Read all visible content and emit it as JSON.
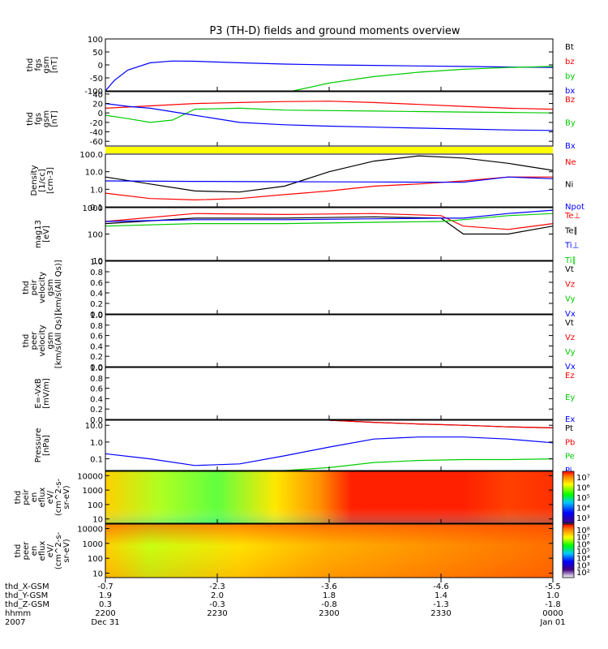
{
  "title": "P3 (TH-D) fields and ground moments overview",
  "chart_data": [
    {
      "id": "p1",
      "type": "line",
      "ylabel": [
        "thd",
        "fgs",
        "gsm",
        "[nT]"
      ],
      "ylim": [
        -100,
        100
      ],
      "ticks": [
        "100",
        "50",
        "0",
        "-50",
        "-100"
      ],
      "tick_values": [
        100,
        50,
        0,
        -50,
        -100
      ],
      "legend": [
        {
          "label": "Bt",
          "color": "#000000"
        },
        {
          "label": "bz",
          "color": "#ff0000"
        },
        {
          "label": "by",
          "color": "#00cc00"
        },
        {
          "label": "bx",
          "color": "#0000ff"
        }
      ],
      "series": [
        {
          "color": "#0000ff",
          "x": [
            0.0,
            0.02,
            0.05,
            0.1,
            0.15,
            0.2,
            0.3,
            0.4,
            0.5,
            0.6,
            0.7,
            0.8,
            0.9,
            1.0
          ],
          "y": [
            -100,
            -60,
            -20,
            8,
            15,
            14,
            8,
            3,
            0,
            -2,
            -4,
            -6,
            -8,
            -10
          ]
        },
        {
          "color": "#00cc00",
          "x": [
            0.42,
            0.5,
            0.6,
            0.7,
            0.8,
            0.9,
            1.0
          ],
          "y": [
            -100,
            -70,
            -45,
            -28,
            -17,
            -10,
            -6
          ]
        }
      ]
    },
    {
      "id": "p2",
      "type": "line",
      "ylabel": [
        "thd",
        "fgs",
        "gsm",
        "[nT]"
      ],
      "ylim": [
        -70,
        45
      ],
      "ticks": [
        "40",
        "20",
        "0",
        "-20",
        "-40",
        "-60"
      ],
      "tick_values": [
        40,
        20,
        0,
        -20,
        -40,
        -60
      ],
      "legend": [
        {
          "label": "Bz",
          "color": "#ff0000"
        },
        {
          "label": "By",
          "color": "#00cc00"
        },
        {
          "label": "Bx",
          "color": "#0000ff"
        }
      ],
      "series": [
        {
          "color": "#ff0000",
          "x": [
            0.0,
            0.1,
            0.2,
            0.3,
            0.4,
            0.5,
            0.6,
            0.7,
            0.8,
            0.9,
            1.0
          ],
          "y": [
            10,
            15,
            20,
            22,
            24,
            25,
            22,
            18,
            14,
            10,
            8
          ]
        },
        {
          "color": "#00cc00",
          "x": [
            0.0,
            0.05,
            0.1,
            0.15,
            0.2,
            0.3,
            0.4,
            0.5,
            0.6,
            0.7,
            0.8,
            0.9,
            1.0
          ],
          "y": [
            -5,
            -12,
            -20,
            -15,
            8,
            10,
            6,
            5,
            4,
            3,
            2,
            1,
            0
          ]
        },
        {
          "color": "#0000ff",
          "x": [
            0.0,
            0.05,
            0.1,
            0.2,
            0.3,
            0.4,
            0.5,
            0.6,
            0.7,
            0.8,
            0.9,
            1.0
          ],
          "y": [
            20,
            14,
            10,
            -5,
            -20,
            -25,
            -28,
            -30,
            -32,
            -34,
            -36,
            -37
          ]
        }
      ]
    },
    {
      "id": "p3",
      "type": "line",
      "yscale": "log",
      "ylabel": [
        "Density",
        "[1/cc]",
        "[cm-3]"
      ],
      "ylim": [
        0.1,
        100
      ],
      "ticks": [
        "100.0",
        "10.0",
        "1.0",
        "0.1"
      ],
      "tick_values": [
        100,
        10,
        1,
        0.1
      ],
      "legend": [
        {
          "label": "Ne",
          "color": "#ff0000"
        },
        {
          "label": "Ni",
          "color": "#000000"
        },
        {
          "label": "Npot",
          "color": "#0000ff"
        }
      ],
      "series": [
        {
          "color": "#000000",
          "x": [
            0.0,
            0.1,
            0.2,
            0.3,
            0.4,
            0.5,
            0.6,
            0.7,
            0.8,
            0.9,
            1.0
          ],
          "y": [
            5,
            2,
            0.8,
            0.7,
            1.5,
            10,
            40,
            80,
            60,
            30,
            12
          ]
        },
        {
          "color": "#ff0000",
          "x": [
            0.0,
            0.1,
            0.2,
            0.3,
            0.4,
            0.5,
            0.6,
            0.7,
            0.8,
            0.9,
            1.0
          ],
          "y": [
            0.6,
            0.3,
            0.25,
            0.3,
            0.5,
            0.8,
            1.5,
            2,
            3,
            5,
            5
          ]
        },
        {
          "color": "#0000ff",
          "x": [
            0.0,
            0.2,
            0.4,
            0.6,
            0.8,
            0.9,
            1.0
          ],
          "y": [
            3,
            2.8,
            2.7,
            2.6,
            2.5,
            5,
            4
          ]
        }
      ]
    },
    {
      "id": "p4",
      "type": "line",
      "yscale": "log",
      "ylabel": [
        "mag13",
        "[eV]"
      ],
      "ylim": [
        10,
        1000
      ],
      "ticks": [
        "1000",
        "100",
        "10"
      ],
      "tick_values": [
        1000,
        100,
        10
      ],
      "legend": [
        {
          "label": "Te⊥",
          "color": "#ff0000"
        },
        {
          "label": "Te∥",
          "color": "#000000"
        },
        {
          "label": "Ti⊥",
          "color": "#0000ff"
        },
        {
          "label": "Ti∥",
          "color": "#00cc00"
        }
      ],
      "series": [
        {
          "color": "#ff0000",
          "x": [
            0.0,
            0.2,
            0.4,
            0.6,
            0.75,
            0.8,
            0.9,
            1.0
          ],
          "y": [
            300,
            600,
            550,
            600,
            500,
            200,
            150,
            250
          ]
        },
        {
          "color": "#000000",
          "x": [
            0.0,
            0.2,
            0.4,
            0.6,
            0.75,
            0.8,
            0.9,
            1.0
          ],
          "y": [
            250,
            400,
            400,
            450,
            400,
            100,
            100,
            200
          ]
        },
        {
          "color": "#0000ff",
          "x": [
            0.0,
            0.2,
            0.4,
            0.6,
            0.75,
            0.8,
            0.9,
            1.0
          ],
          "y": [
            300,
            350,
            350,
            380,
            400,
            400,
            600,
            800
          ]
        },
        {
          "color": "#00cc00",
          "x": [
            0.0,
            0.2,
            0.4,
            0.6,
            0.75,
            0.8,
            0.9,
            1.0
          ],
          "y": [
            200,
            250,
            250,
            280,
            300,
            350,
            500,
            600
          ]
        }
      ]
    },
    {
      "id": "p5",
      "type": "line",
      "ylabel": [
        "thd",
        "peir",
        "velocity",
        "gsm",
        "[km/s(All Qs)]"
      ],
      "ylim": [
        0,
        1
      ],
      "ticks": [
        "1.0",
        "0.8",
        "0.6",
        "0.4",
        "0.2",
        "0.0"
      ],
      "tick_values": [
        1,
        0.8,
        0.6,
        0.4,
        0.2,
        0
      ],
      "legend": [
        {
          "label": "Vt",
          "color": "#000000"
        },
        {
          "label": "Vz",
          "color": "#ff0000"
        },
        {
          "label": "Vy",
          "color": "#00cc00"
        },
        {
          "label": "Vx",
          "color": "#0000ff"
        }
      ],
      "series": []
    },
    {
      "id": "p6",
      "type": "line",
      "ylabel": [
        "thd",
        "peer",
        "velocity",
        "gsm",
        "[km/s(All Qs)]"
      ],
      "ylim": [
        0,
        1
      ],
      "ticks": [
        "1.0",
        "0.8",
        "0.6",
        "0.4",
        "0.2",
        "0.0"
      ],
      "tick_values": [
        1,
        0.8,
        0.6,
        0.4,
        0.2,
        0
      ],
      "legend": [
        {
          "label": "Vt",
          "color": "#000000"
        },
        {
          "label": "Vz",
          "color": "#ff0000"
        },
        {
          "label": "Vy",
          "color": "#00cc00"
        },
        {
          "label": "Vx",
          "color": "#0000ff"
        }
      ],
      "series": []
    },
    {
      "id": "p7",
      "type": "line",
      "ylabel": [
        "E=-VxB",
        "[mV/m]"
      ],
      "ylim": [
        0,
        1
      ],
      "ticks": [
        "1.0",
        "0.8",
        "0.6",
        "0.4",
        "0.2",
        "0.0"
      ],
      "tick_values": [
        1,
        0.8,
        0.6,
        0.4,
        0.2,
        0
      ],
      "legend": [
        {
          "label": "Ez",
          "color": "#ff0000"
        },
        {
          "label": "Ey",
          "color": "#00cc00"
        },
        {
          "label": "Ex",
          "color": "#0000ff"
        }
      ],
      "series": []
    },
    {
      "id": "p8",
      "type": "line",
      "yscale": "log",
      "ylabel": [
        "Pressure",
        "[nPa]"
      ],
      "ylim": [
        0.02,
        20
      ],
      "ticks": [
        "10.0",
        "1.0",
        "0.1"
      ],
      "tick_values": [
        10,
        1,
        0.1
      ],
      "legend": [
        {
          "label": "Pt",
          "color": "#000000"
        },
        {
          "label": "Pb",
          "color": "#ff0000"
        },
        {
          "label": "Pe",
          "color": "#00cc00"
        },
        {
          "label": "Pi",
          "color": "#0000ff"
        }
      ],
      "series": [
        {
          "color": "#000000",
          "x": [
            0.5,
            0.6,
            0.7,
            0.8,
            0.9,
            1.0
          ],
          "y": [
            20,
            15,
            12,
            10,
            8,
            7
          ]
        },
        {
          "color": "#ff0000",
          "x": [
            0.5,
            0.6,
            0.7,
            0.8,
            0.9,
            1.0
          ],
          "y": [
            20,
            15,
            12,
            10,
            8,
            7
          ]
        },
        {
          "color": "#0000ff",
          "x": [
            0.0,
            0.1,
            0.2,
            0.3,
            0.4,
            0.5,
            0.6,
            0.7,
            0.8,
            0.9,
            1.0
          ],
          "y": [
            0.2,
            0.1,
            0.04,
            0.05,
            0.15,
            0.5,
            1.5,
            2,
            2,
            1.5,
            0.9
          ]
        },
        {
          "color": "#00cc00",
          "x": [
            0.0,
            0.3,
            0.4,
            0.5,
            0.6,
            0.7,
            0.8,
            0.9,
            1.0
          ],
          "y": [
            0.02,
            0.02,
            0.02,
            0.03,
            0.06,
            0.08,
            0.09,
            0.09,
            0.1
          ]
        }
      ]
    },
    {
      "id": "p9",
      "type": "heatmap",
      "ylabel": [
        "thd",
        "peir",
        "en",
        "eflux",
        "eV/",
        "(cm^2-s-",
        "sr-eV)"
      ],
      "ylim": [
        5,
        20000
      ],
      "ticks": [
        "10000",
        "1000",
        "100",
        "10"
      ],
      "tick_values": [
        10000,
        1000,
        100,
        10
      ],
      "colorbar_ticks": [
        "10⁷",
        "10⁶",
        "10⁵",
        "10⁴",
        "10³"
      ]
    },
    {
      "id": "p10",
      "type": "heatmap",
      "ylabel": [
        "thd",
        "peer",
        "en",
        "eflux",
        "eV/",
        "(cm^2-s-",
        "sr-eV)"
      ],
      "ylim": [
        5,
        20000
      ],
      "ticks": [
        "10000",
        "1000",
        "100",
        "10"
      ],
      "tick_values": [
        10000,
        1000,
        100,
        10
      ],
      "colorbar_ticks": [
        "10⁸",
        "10⁷",
        "10⁶",
        "10⁵",
        "10⁴",
        "10³",
        "10²"
      ]
    }
  ],
  "xaxis": {
    "labels": [
      "thd_X-GSM",
      "thd_Y-GSM",
      "thd_Z-GSM",
      "hhmm",
      "2007"
    ],
    "columns": [
      [
        "-0.7",
        "1.9",
        "0.3",
        "2200",
        "Dec 31"
      ],
      [
        "-2.3",
        "2.0",
        "-0.3",
        "2230",
        ""
      ],
      [
        "-3.6",
        "1.8",
        "-0.8",
        "2300",
        ""
      ],
      [
        "-4.6",
        "1.4",
        "-1.3",
        "2330",
        ""
      ],
      [
        "-5.5",
        "1.0",
        "-1.8",
        "0000",
        "Jan 01"
      ]
    ]
  }
}
